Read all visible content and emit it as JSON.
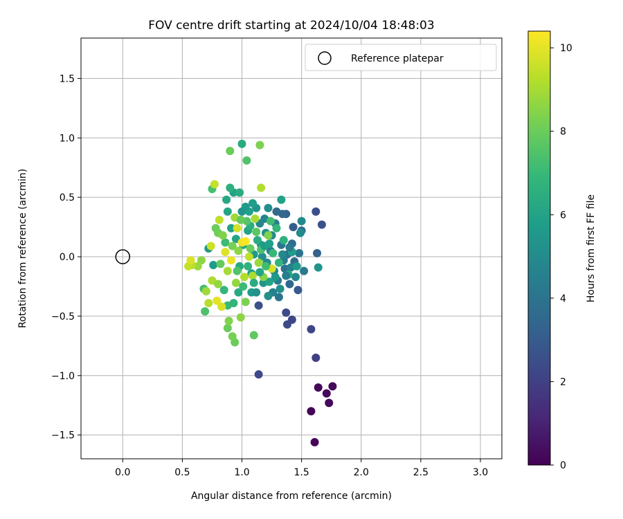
{
  "chart_data": {
    "type": "scatter",
    "title": "FOV centre drift starting at 2024/10/04 18:48:03",
    "xlabel": "Angular distance from reference (arcmin)",
    "ylabel": "Rotation from reference (arcmin)",
    "xlim": [
      -0.35,
      3.18
    ],
    "ylim": [
      -1.7,
      1.84
    ],
    "xticks": [
      0.0,
      0.5,
      1.0,
      1.5,
      2.0,
      2.5,
      3.0
    ],
    "xtick_labels": [
      "0.0",
      "0.5",
      "1.0",
      "1.5",
      "2.0",
      "2.5",
      "3.0"
    ],
    "yticks": [
      -1.5,
      -1.0,
      -0.5,
      0.0,
      0.5,
      1.0,
      1.5
    ],
    "ytick_labels": [
      "−1.5",
      "−1.0",
      "−0.5",
      "0.0",
      "0.5",
      "1.0",
      "1.5"
    ],
    "grid": true,
    "legend": {
      "label": "Reference platepar",
      "position": "top-right"
    },
    "reference_point": {
      "x": 0.0,
      "y": 0.0,
      "label": "Reference platepar"
    },
    "colorbar": {
      "label": "Hours from first FF file",
      "colormap": "viridis",
      "range": [
        0,
        10.4
      ],
      "ticks": [
        0,
        2,
        4,
        6,
        8,
        10
      ],
      "tick_labels": [
        "0",
        "2",
        "4",
        "6",
        "8",
        "10"
      ]
    },
    "points": [
      {
        "x": 1.58,
        "y": -1.3,
        "h": 0.1
      },
      {
        "x": 1.61,
        "y": -1.56,
        "h": 0.1
      },
      {
        "x": 1.64,
        "y": -1.1,
        "h": 0.2
      },
      {
        "x": 1.71,
        "y": -1.15,
        "h": 0.2
      },
      {
        "x": 1.73,
        "y": -1.23,
        "h": 0.2
      },
      {
        "x": 1.76,
        "y": -1.09,
        "h": 0.2
      },
      {
        "x": 1.62,
        "y": -0.85,
        "h": 2.0
      },
      {
        "x": 1.58,
        "y": -0.61,
        "h": 2.2
      },
      {
        "x": 1.14,
        "y": -0.99,
        "h": 2.3
      },
      {
        "x": 1.37,
        "y": -0.47,
        "h": 2.3
      },
      {
        "x": 1.42,
        "y": -0.53,
        "h": 2.2
      },
      {
        "x": 1.38,
        "y": -0.57,
        "h": 2.4
      },
      {
        "x": 1.14,
        "y": -0.41,
        "h": 2.6
      },
      {
        "x": 1.62,
        "y": 0.38,
        "h": 2.5
      },
      {
        "x": 1.67,
        "y": 0.27,
        "h": 2.6
      },
      {
        "x": 1.63,
        "y": 0.03,
        "h": 3.2
      },
      {
        "x": 1.47,
        "y": -0.28,
        "h": 3.0
      },
      {
        "x": 1.43,
        "y": 0.25,
        "h": 3.1
      },
      {
        "x": 1.37,
        "y": 0.36,
        "h": 3.2
      },
      {
        "x": 1.34,
        "y": 0.36,
        "h": 3.4
      },
      {
        "x": 1.29,
        "y": 0.38,
        "h": 3.6
      },
      {
        "x": 1.5,
        "y": 0.22,
        "h": 3.8
      },
      {
        "x": 1.48,
        "y": 0.03,
        "h": 4.0
      },
      {
        "x": 1.52,
        "y": -0.12,
        "h": 4.2
      },
      {
        "x": 1.44,
        "y": -0.04,
        "h": 3.6
      },
      {
        "x": 1.42,
        "y": 0.11,
        "h": 3.7
      },
      {
        "x": 1.4,
        "y": -0.23,
        "h": 3.5
      },
      {
        "x": 1.36,
        "y": -0.1,
        "h": 3.9
      },
      {
        "x": 1.33,
        "y": 0.1,
        "h": 4.1
      },
      {
        "x": 1.3,
        "y": -0.2,
        "h": 4.3
      },
      {
        "x": 1.31,
        "y": -0.34,
        "h": 4.0
      },
      {
        "x": 1.28,
        "y": 0.28,
        "h": 4.4
      },
      {
        "x": 1.26,
        "y": -0.3,
        "h": 4.6
      },
      {
        "x": 1.24,
        "y": 0.05,
        "h": 4.5
      },
      {
        "x": 1.38,
        "y": 0.02,
        "h": 3.9
      },
      {
        "x": 1.35,
        "y": -0.03,
        "h": 4.3
      },
      {
        "x": 1.41,
        "y": -0.09,
        "h": 4.6
      },
      {
        "x": 1.45,
        "y": -0.17,
        "h": 4.8
      },
      {
        "x": 1.5,
        "y": 0.3,
        "h": 4.9
      },
      {
        "x": 1.49,
        "y": 0.2,
        "h": 5.0
      },
      {
        "x": 1.64,
        "y": -0.09,
        "h": 5.4
      },
      {
        "x": 1.33,
        "y": 0.48,
        "h": 5.9
      },
      {
        "x": 1.22,
        "y": -0.33,
        "h": 5.2
      },
      {
        "x": 1.18,
        "y": -0.22,
        "h": 5.4
      },
      {
        "x": 1.2,
        "y": 0.2,
        "h": 5.3
      },
      {
        "x": 1.16,
        "y": 0.1,
        "h": 5.5
      },
      {
        "x": 1.12,
        "y": 0.41,
        "h": 5.4
      },
      {
        "x": 1.09,
        "y": 0.45,
        "h": 5.8
      },
      {
        "x": 1.06,
        "y": 0.38,
        "h": 5.9
      },
      {
        "x": 1.03,
        "y": 0.42,
        "h": 5.6
      },
      {
        "x": 1.0,
        "y": 0.38,
        "h": 5.4
      },
      {
        "x": 0.93,
        "y": 0.54,
        "h": 6.0
      },
      {
        "x": 0.98,
        "y": 0.54,
        "h": 6.4
      },
      {
        "x": 0.87,
        "y": 0.48,
        "h": 6.2
      },
      {
        "x": 0.9,
        "y": 0.58,
        "h": 6.6
      },
      {
        "x": 1.0,
        "y": 0.95,
        "h": 6.3
      },
      {
        "x": 0.91,
        "y": 0.24,
        "h": 6.0
      },
      {
        "x": 0.88,
        "y": 0.38,
        "h": 6.1
      },
      {
        "x": 0.72,
        "y": 0.07,
        "h": 5.5
      },
      {
        "x": 0.76,
        "y": -0.07,
        "h": 5.7
      },
      {
        "x": 1.08,
        "y": -0.3,
        "h": 5.6
      },
      {
        "x": 1.12,
        "y": -0.3,
        "h": 5.3
      },
      {
        "x": 1.15,
        "y": 0.28,
        "h": 4.8
      },
      {
        "x": 1.19,
        "y": 0.32,
        "h": 4.7
      },
      {
        "x": 1.22,
        "y": 0.41,
        "h": 5.1
      },
      {
        "x": 1.25,
        "y": 0.18,
        "h": 4.9
      },
      {
        "x": 1.27,
        "y": -0.12,
        "h": 4.7
      },
      {
        "x": 1.21,
        "y": -0.05,
        "h": 5.0
      },
      {
        "x": 1.17,
        "y": 0.0,
        "h": 5.2
      },
      {
        "x": 1.1,
        "y": 0.02,
        "h": 5.6
      },
      {
        "x": 1.08,
        "y": -0.14,
        "h": 5.8
      },
      {
        "x": 1.05,
        "y": 0.22,
        "h": 6.0
      },
      {
        "x": 1.01,
        "y": 0.1,
        "h": 6.2
      },
      {
        "x": 0.98,
        "y": -0.08,
        "h": 6.3
      },
      {
        "x": 0.95,
        "y": 0.15,
        "h": 6.1
      },
      {
        "x": 1.13,
        "y": 0.14,
        "h": 6.4
      },
      {
        "x": 1.07,
        "y": 0.26,
        "h": 6.5
      },
      {
        "x": 1.23,
        "y": -0.21,
        "h": 6.0
      },
      {
        "x": 0.97,
        "y": -0.3,
        "h": 6.3
      },
      {
        "x": 0.85,
        "y": -0.28,
        "h": 6.9
      },
      {
        "x": 0.88,
        "y": -0.41,
        "h": 7.0
      },
      {
        "x": 0.93,
        "y": -0.39,
        "h": 6.8
      },
      {
        "x": 0.86,
        "y": 0.12,
        "h": 7.1
      },
      {
        "x": 0.68,
        "y": -0.27,
        "h": 7.3
      },
      {
        "x": 0.69,
        "y": -0.46,
        "h": 7.4
      },
      {
        "x": 0.75,
        "y": 0.57,
        "h": 7.3
      },
      {
        "x": 1.04,
        "y": 0.81,
        "h": 7.5
      },
      {
        "x": 1.1,
        "y": -0.66,
        "h": 7.8
      },
      {
        "x": 0.94,
        "y": -0.72,
        "h": 8.0
      },
      {
        "x": 0.92,
        "y": -0.67,
        "h": 8.2
      },
      {
        "x": 0.88,
        "y": -0.6,
        "h": 8.0
      },
      {
        "x": 0.9,
        "y": 0.89,
        "h": 8.0
      },
      {
        "x": 1.15,
        "y": 0.94,
        "h": 8.3
      },
      {
        "x": 0.78,
        "y": 0.24,
        "h": 8.0
      },
      {
        "x": 0.8,
        "y": 0.2,
        "h": 8.1
      },
      {
        "x": 0.82,
        "y": -0.06,
        "h": 7.9
      },
      {
        "x": 0.99,
        "y": -0.51,
        "h": 8.6
      },
      {
        "x": 0.89,
        "y": -0.54,
        "h": 8.4
      },
      {
        "x": 1.03,
        "y": -0.38,
        "h": 8.3
      },
      {
        "x": 1.16,
        "y": 0.58,
        "h": 9.2
      },
      {
        "x": 0.77,
        "y": 0.61,
        "h": 9.5
      },
      {
        "x": 0.66,
        "y": -0.03,
        "h": 8.6
      },
      {
        "x": 0.63,
        "y": -0.08,
        "h": 8.8
      },
      {
        "x": 0.7,
        "y": -0.29,
        "h": 8.9
      },
      {
        "x": 0.72,
        "y": -0.39,
        "h": 9.3
      },
      {
        "x": 0.75,
        "y": -0.2,
        "h": 9.1
      },
      {
        "x": 0.8,
        "y": -0.23,
        "h": 8.7
      },
      {
        "x": 0.83,
        "y": -0.42,
        "h": 9.8
      },
      {
        "x": 0.79,
        "y": -0.37,
        "h": 10.0
      },
      {
        "x": 0.58,
        "y": -0.07,
        "h": 9.3
      },
      {
        "x": 0.55,
        "y": -0.08,
        "h": 9.5
      },
      {
        "x": 0.57,
        "y": -0.03,
        "h": 9.8
      },
      {
        "x": 0.74,
        "y": 0.09,
        "h": 9.6
      },
      {
        "x": 0.81,
        "y": 0.31,
        "h": 9.4
      },
      {
        "x": 0.86,
        "y": 0.04,
        "h": 9.9
      },
      {
        "x": 0.91,
        "y": -0.03,
        "h": 10.1
      },
      {
        "x": 0.96,
        "y": 0.24,
        "h": 9.7
      },
      {
        "x": 1.0,
        "y": 0.12,
        "h": 10.2
      },
      {
        "x": 1.03,
        "y": 0.13,
        "h": 10.4
      },
      {
        "x": 1.06,
        "y": 0.0,
        "h": 9.4
      },
      {
        "x": 1.09,
        "y": -0.16,
        "h": 9.1
      },
      {
        "x": 1.11,
        "y": 0.32,
        "h": 9.0
      },
      {
        "x": 1.14,
        "y": -0.05,
        "h": 8.8
      },
      {
        "x": 1.18,
        "y": -0.17,
        "h": 8.5
      },
      {
        "x": 1.22,
        "y": 0.18,
        "h": 8.4
      },
      {
        "x": 1.25,
        "y": -0.1,
        "h": 9.7
      },
      {
        "x": 0.94,
        "y": 0.33,
        "h": 8.9
      },
      {
        "x": 0.97,
        "y": 0.05,
        "h": 8.6
      },
      {
        "x": 0.92,
        "y": 0.09,
        "h": 8.2
      },
      {
        "x": 0.84,
        "y": 0.18,
        "h": 8.4
      },
      {
        "x": 0.88,
        "y": -0.12,
        "h": 9.0
      },
      {
        "x": 0.95,
        "y": -0.22,
        "h": 8.7
      },
      {
        "x": 1.02,
        "y": -0.17,
        "h": 9.2
      },
      {
        "x": 1.07,
        "y": 0.07,
        "h": 8.0
      },
      {
        "x": 1.12,
        "y": 0.21,
        "h": 7.7
      },
      {
        "x": 1.16,
        "y": 0.06,
        "h": 7.4
      },
      {
        "x": 1.2,
        "y": -0.08,
        "h": 7.2
      },
      {
        "x": 1.26,
        "y": 0.03,
        "h": 7.0
      },
      {
        "x": 1.31,
        "y": -0.05,
        "h": 6.8
      },
      {
        "x": 1.35,
        "y": 0.14,
        "h": 6.6
      },
      {
        "x": 1.39,
        "y": -0.15,
        "h": 6.2
      },
      {
        "x": 1.42,
        "y": 0.04,
        "h": 5.8
      },
      {
        "x": 1.46,
        "y": -0.08,
        "h": 5.6
      },
      {
        "x": 1.29,
        "y": 0.24,
        "h": 6.9
      },
      {
        "x": 1.24,
        "y": 0.3,
        "h": 7.2
      },
      {
        "x": 1.04,
        "y": 0.3,
        "h": 7.6
      },
      {
        "x": 0.99,
        "y": 0.31,
        "h": 7.9
      },
      {
        "x": 0.96,
        "y": -0.12,
        "h": 7.5
      },
      {
        "x": 1.01,
        "y": -0.25,
        "h": 7.1
      },
      {
        "x": 1.05,
        "y": -0.08,
        "h": 6.7
      },
      {
        "x": 1.1,
        "y": -0.22,
        "h": 6.4
      },
      {
        "x": 1.15,
        "y": -0.13,
        "h": 6.1
      },
      {
        "x": 1.19,
        "y": 0.09,
        "h": 5.7
      },
      {
        "x": 1.23,
        "y": 0.11,
        "h": 5.9
      },
      {
        "x": 1.28,
        "y": -0.17,
        "h": 5.5
      },
      {
        "x": 1.32,
        "y": -0.27,
        "h": 5.2
      },
      {
        "x": 1.34,
        "y": 0.02,
        "h": 4.9
      },
      {
        "x": 1.37,
        "y": -0.16,
        "h": 4.4
      },
      {
        "x": 1.4,
        "y": 0.08,
        "h": 4.2
      }
    ]
  }
}
